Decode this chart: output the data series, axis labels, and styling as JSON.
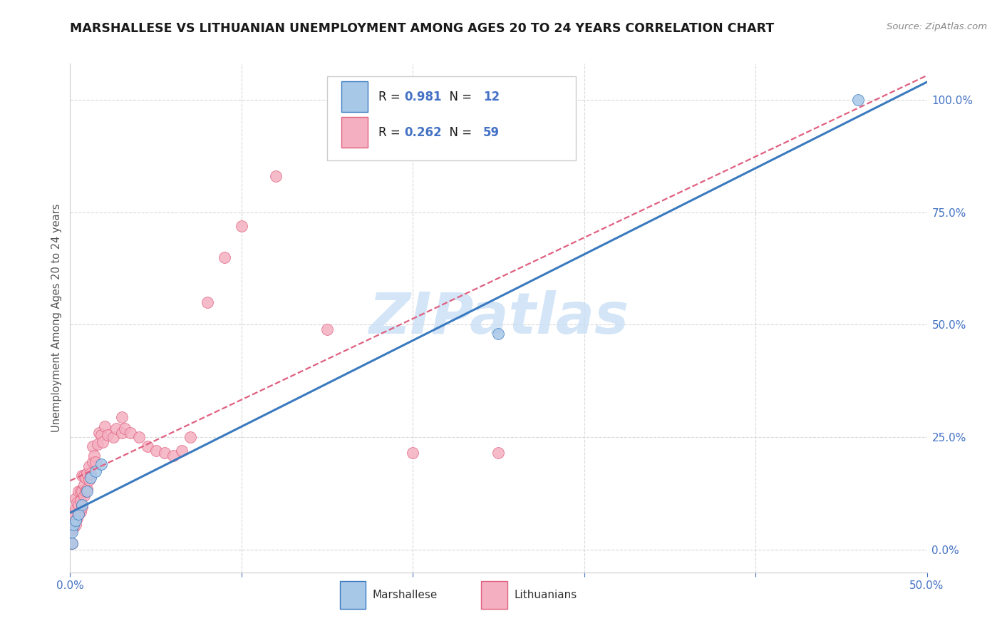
{
  "title": "MARSHALLESE VS LITHUANIAN UNEMPLOYMENT AMONG AGES 20 TO 24 YEARS CORRELATION CHART",
  "source": "Source: ZipAtlas.com",
  "ylabel": "Unemployment Among Ages 20 to 24 years",
  "xlim": [
    0.0,
    0.5
  ],
  "ylim": [
    -0.05,
    1.08
  ],
  "yticks": [
    0.0,
    0.25,
    0.5,
    0.75,
    1.0
  ],
  "ytick_labels": [
    "0.0%",
    "25.0%",
    "50.0%",
    "75.0%",
    "100.0%"
  ],
  "xticks": [
    0.0,
    0.1,
    0.2,
    0.3,
    0.4,
    0.5
  ],
  "xtick_labels": [
    "0.0%",
    "",
    "",
    "",
    "",
    "50.0%"
  ],
  "marshallese_R": 0.981,
  "marshallese_N": 12,
  "lithuanian_R": 0.262,
  "lithuanian_N": 59,
  "bg_color": "#ffffff",
  "grid_color": "#d8d8d8",
  "marshallese_dot_color": "#a8c8e8",
  "marshallese_line_color": "#3a7abf",
  "lithuanian_dot_color": "#f4b0c0",
  "lithuanian_line_color": "#e06080",
  "watermark_color": "#c8dff5",
  "axis_label_color": "#4472c4",
  "marshallese_x": [
    0.001,
    0.001,
    0.002,
    0.003,
    0.005,
    0.007,
    0.01,
    0.012,
    0.015,
    0.018,
    0.25,
    0.46
  ],
  "marshallese_y": [
    0.015,
    0.04,
    0.055,
    0.065,
    0.08,
    0.1,
    0.13,
    0.16,
    0.175,
    0.19,
    0.48,
    1.0
  ],
  "lithuanian_x": [
    0.001,
    0.001,
    0.001,
    0.002,
    0.002,
    0.003,
    0.003,
    0.003,
    0.004,
    0.004,
    0.005,
    0.005,
    0.005,
    0.006,
    0.006,
    0.006,
    0.007,
    0.007,
    0.007,
    0.008,
    0.008,
    0.008,
    0.009,
    0.009,
    0.01,
    0.01,
    0.011,
    0.011,
    0.012,
    0.013,
    0.013,
    0.014,
    0.015,
    0.016,
    0.017,
    0.018,
    0.019,
    0.02,
    0.022,
    0.025,
    0.027,
    0.03,
    0.03,
    0.032,
    0.035,
    0.04,
    0.045,
    0.05,
    0.055,
    0.06,
    0.065,
    0.07,
    0.08,
    0.09,
    0.1,
    0.12,
    0.15,
    0.2,
    0.25
  ],
  "lithuanian_y": [
    0.015,
    0.045,
    0.065,
    0.05,
    0.08,
    0.055,
    0.09,
    0.115,
    0.07,
    0.105,
    0.08,
    0.1,
    0.13,
    0.085,
    0.11,
    0.13,
    0.095,
    0.13,
    0.165,
    0.12,
    0.145,
    0.165,
    0.13,
    0.16,
    0.135,
    0.17,
    0.155,
    0.185,
    0.17,
    0.195,
    0.23,
    0.21,
    0.195,
    0.235,
    0.26,
    0.255,
    0.24,
    0.275,
    0.255,
    0.25,
    0.27,
    0.26,
    0.295,
    0.27,
    0.26,
    0.25,
    0.23,
    0.22,
    0.215,
    0.21,
    0.22,
    0.25,
    0.55,
    0.65,
    0.72,
    0.83,
    0.49,
    0.215,
    0.215
  ]
}
